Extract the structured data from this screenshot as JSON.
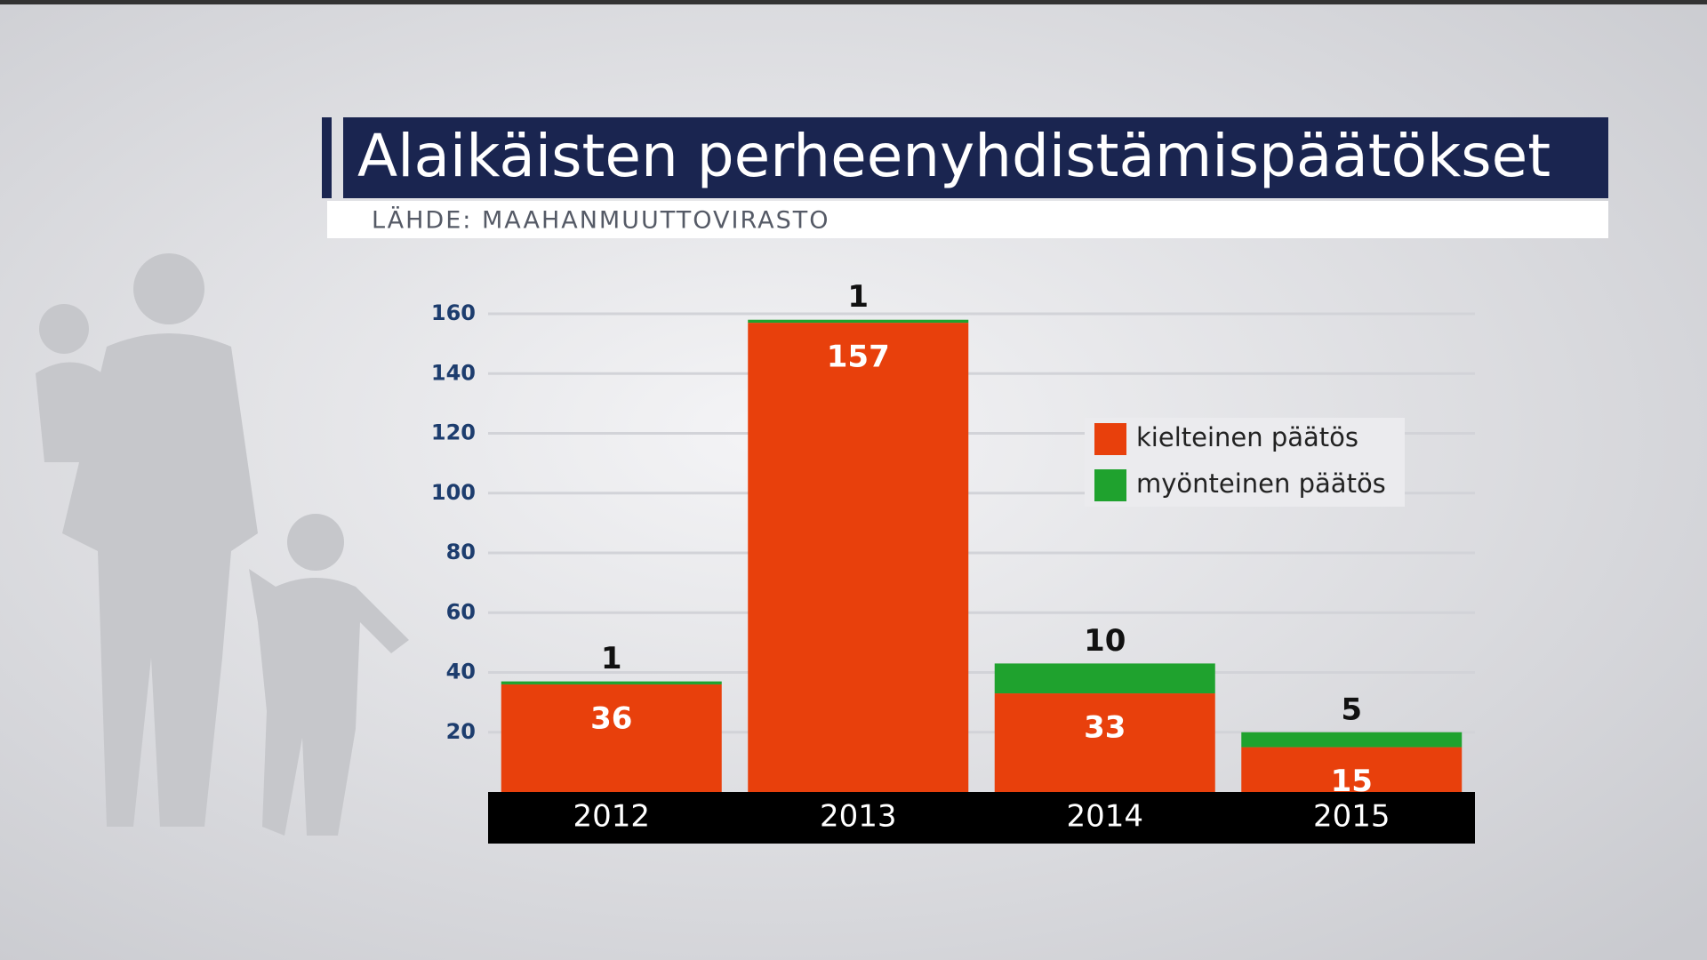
{
  "chart_data": {
    "type": "stacked_bar",
    "title": "Alaikäisten perheenyhdistämispäätökset",
    "subtitle": "LÄHDE: MAAHANMUUTTOVIRASTO",
    "categories": [
      "2012",
      "2013",
      "2014",
      "2015"
    ],
    "series": [
      {
        "name": "kielteinen päätös",
        "color": "#e8400c",
        "values": [
          36,
          157,
          33,
          15
        ]
      },
      {
        "name": "myönteinen päätös",
        "color": "#1fa22e",
        "values": [
          1,
          1,
          10,
          5
        ]
      }
    ],
    "ylim": [
      0,
      160
    ],
    "yticks": [
      20,
      40,
      60,
      80,
      100,
      120,
      140,
      160
    ],
    "grid": true
  }
}
